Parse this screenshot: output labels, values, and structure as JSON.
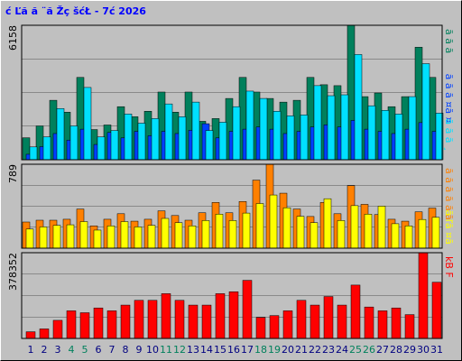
{
  "chart_data": [
    {
      "type": "bar",
      "title": "ć Ľă  ă ¨ă Žç šćŁ  - 7ć   2026",
      "ylim": [
        0,
        6158
      ],
      "yticks": [
        6158
      ],
      "series": [
        {
          "name": "ă ă ă",
          "color": "#00805c",
          "values": [
            1006,
            1550,
            2723,
            2178,
            3770,
            1382,
            1592,
            2430,
            1969,
            2220,
            3100,
            2178,
            3100,
            1759,
            1885,
            2806,
            3770,
            3100,
            2806,
            2639,
            2723,
            3770,
            3435,
            3393,
            6158,
            2890,
            3058,
            2430,
            2890,
            5152,
            3770
          ]
        },
        {
          "name": "ă ă ă ¤ă ¤",
          "color": "#0040ff",
          "values": [
            250,
            600,
            1200,
            900,
            1400,
            700,
            1250,
            1000,
            1300,
            1100,
            1300,
            1200,
            1350,
            1650,
            1000,
            1300,
            1400,
            1500,
            1400,
            1200,
            1300,
            1500,
            1600,
            1500,
            1800,
            1400,
            1300,
            1200,
            1400,
            1700,
            1300
          ]
        },
        {
          "name": "ă ă ă ¸",
          "color": "#00e0ff",
          "values": [
            587,
            1048,
            2346,
            1550,
            3310,
            1048,
            1341,
            2095,
            1676,
            1886,
            2556,
            1969,
            2640,
            1341,
            1718,
            2430,
            3143,
            2807,
            2221,
            2011,
            2053,
            3394,
            2933,
            2975,
            4819,
            2472,
            2263,
            2095,
            2891,
            4400,
            2137
          ]
        }
      ]
    },
    {
      "type": "bar",
      "ylim": [
        0,
        789
      ],
      "yticks": [
        789
      ],
      "series": [
        {
          "name": "ă ă ă ă ă ă",
          "color": "#ff8000",
          "values": [
            246,
            263,
            263,
            272,
            368,
            210,
            272,
            324,
            254,
            272,
            351,
            307,
            263,
            333,
            430,
            333,
            439,
            640,
            789,
            517,
            368,
            298,
            430,
            324,
            588,
            412,
            316,
            272,
            254,
            342,
            377
          ]
        },
        {
          "name": "ă ľă ¤ă",
          "color": "#ffff00",
          "values": [
            180,
            200,
            215,
            220,
            250,
            170,
            210,
            250,
            200,
            215,
            280,
            240,
            210,
            260,
            320,
            260,
            330,
            420,
            500,
            380,
            300,
            240,
            465,
            260,
            400,
            320,
            395,
            230,
            210,
            270,
            290
          ]
        }
      ]
    },
    {
      "type": "bar",
      "ylim": [
        0,
        378352
      ],
      "yticks": [
        378352
      ],
      "series": [
        {
          "name": "kB F",
          "color": "#ff0000",
          "values": [
            29428,
            42040,
            79876,
            121916,
            113508,
            134528,
            121916,
            147140,
            168160,
            168160,
            197588,
            168160,
            147140,
            147140,
            197588,
            205996,
            256444,
            92488,
            100896,
            121916,
            168160,
            147140,
            184976,
            147140,
            235424,
            138732,
            121916,
            134528,
            105100,
            378352,
            248036
          ]
        }
      ],
      "categories": [
        "1",
        "2",
        "3",
        "4",
        "5",
        "6",
        "7",
        "8",
        "9",
        "10",
        "11",
        "12",
        "13",
        "14",
        "15",
        "16",
        "17",
        "18",
        "19",
        "20",
        "21",
        "22",
        "23",
        "24",
        "25",
        "26",
        "27",
        "28",
        "29",
        "30",
        "31"
      ],
      "category_colors": [
        "#000080",
        "#000080",
        "#000080",
        "#00805c",
        "#00805c",
        "#000080",
        "#000080",
        "#000080",
        "#000080",
        "#000080",
        "#00805c",
        "#00805c",
        "#000080",
        "#000080",
        "#000080",
        "#000080",
        "#000080",
        "#00805c",
        "#00805c",
        "#000080",
        "#000080",
        "#000080",
        "#000080",
        "#000080",
        "#00805c",
        "#00805c",
        "#000080",
        "#000080",
        "#000080",
        "#000080",
        "#000080"
      ]
    }
  ]
}
